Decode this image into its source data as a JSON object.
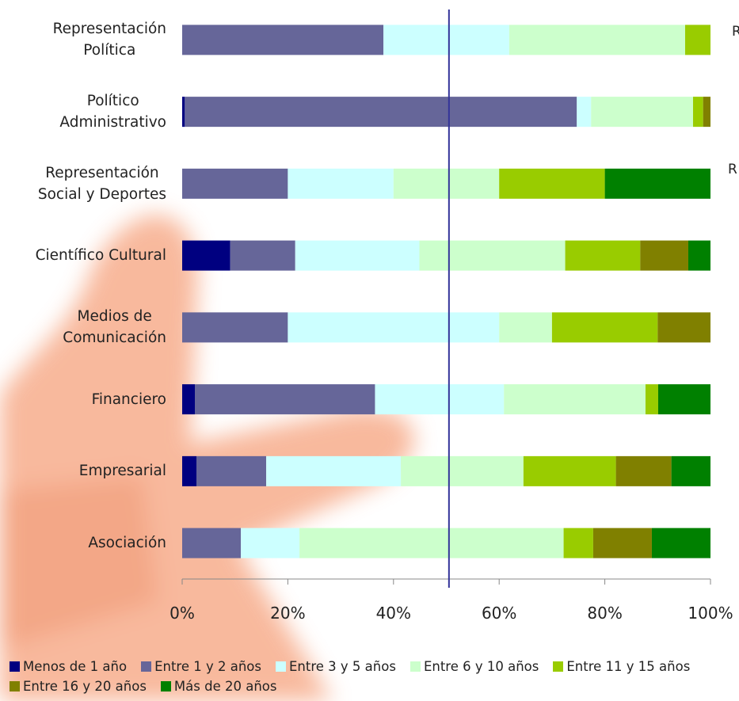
{
  "chart_data": {
    "type": "stacked_barh",
    "categories": [
      "Representación\nPolítica",
      "Político\nAdministrativo",
      "Representación\nSocial y Deportes",
      "Científico Cultural",
      "Medios de\nComunicación",
      "Financiero",
      "Empresarial",
      "Asociación"
    ],
    "series": [
      {
        "name": "Menos de 1 año",
        "color": "#000080",
        "values": [
          0,
          0.5,
          0,
          9.1,
          0,
          2.4,
          2.7,
          0
        ]
      },
      {
        "name": "Entre 1 y 2 años",
        "color": "#666699",
        "values": [
          38.1,
          74.2,
          20,
          12.3,
          20,
          34.1,
          13.2,
          11.1
        ]
      },
      {
        "name": "Entre 3 y 5 años",
        "color": "#ccffff",
        "values": [
          23.8,
          2.7,
          20,
          23.5,
          40,
          24.4,
          25.5,
          11.1
        ]
      },
      {
        "name": "Entre 6 y 10 años",
        "color": "#ccffcc",
        "values": [
          33.3,
          19.3,
          20,
          27.6,
          10,
          26.8,
          23.2,
          50
        ]
      },
      {
        "name": "Entre 11 y 15 años",
        "color": "#99cc00",
        "values": [
          4.8,
          1.9,
          20,
          14.2,
          20,
          2.4,
          17.5,
          5.6
        ]
      },
      {
        "name": "Entre 16 y 20 años",
        "color": "#808000",
        "values": [
          0,
          1.4,
          0,
          9.1,
          10,
          0,
          10.5,
          11.1
        ]
      },
      {
        "name": "Más de 20 años",
        "color": "#008000",
        "values": [
          0,
          0,
          20,
          4.2,
          0,
          9.9,
          7.4,
          11.1
        ]
      }
    ],
    "xlim": [
      0,
      100
    ],
    "xticks": [
      {
        "value": 0,
        "label": "0%"
      },
      {
        "value": 20,
        "label": "20%"
      },
      {
        "value": 40,
        "label": "40%"
      },
      {
        "value": 60,
        "label": "60%"
      },
      {
        "value": 80,
        "label": "80%"
      },
      {
        "value": 100,
        "label": "100%"
      }
    ],
    "reference_line": 50.5,
    "reference_color": "#333399",
    "annotations": [
      "R",
      "R"
    ]
  }
}
